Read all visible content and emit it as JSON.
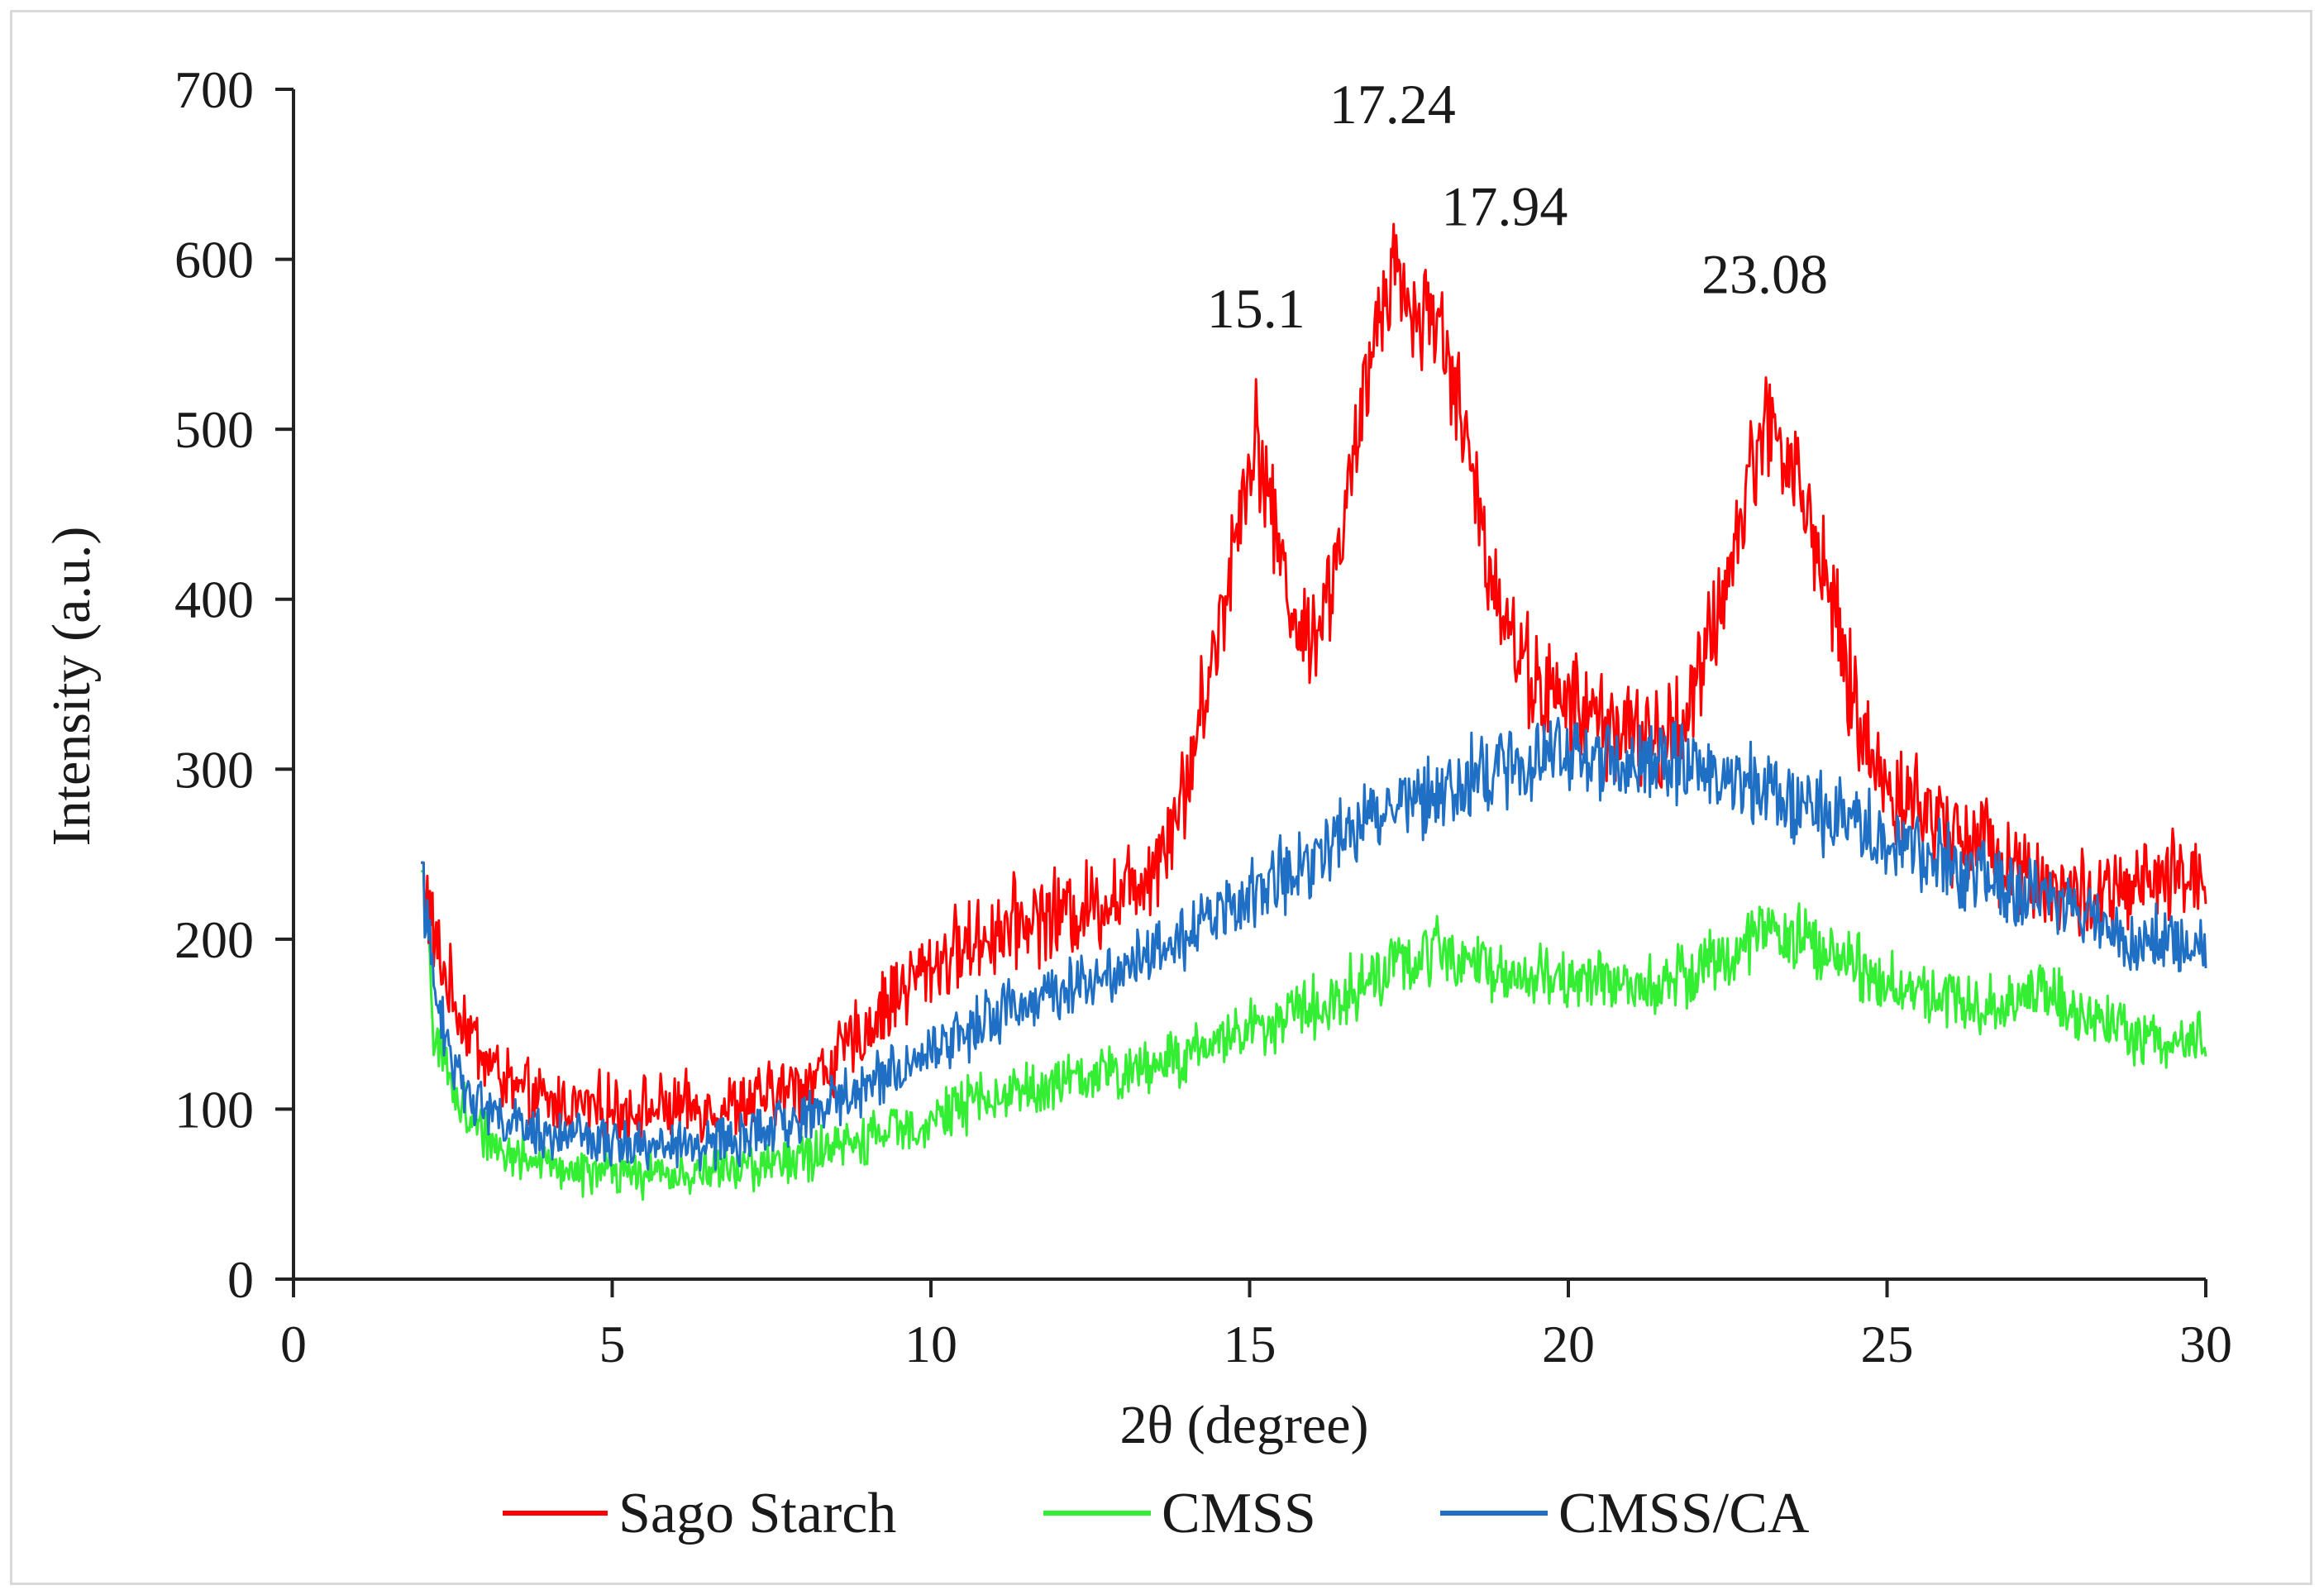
{
  "chart_data": {
    "type": "line",
    "title": "",
    "xlabel": "2θ (degree)",
    "ylabel": "Intensity (a.u.)",
    "xlim": [
      0,
      30
    ],
    "ylim": [
      0,
      700
    ],
    "xticks": [
      0,
      5,
      10,
      15,
      20,
      25,
      30
    ],
    "yticks": [
      0,
      100,
      200,
      300,
      400,
      500,
      600,
      700
    ],
    "grid": false,
    "legend_position": "bottom",
    "annotations": [
      {
        "text": "15.1",
        "x": 15.1,
        "y": 560
      },
      {
        "text": "17.24",
        "x": 17.24,
        "y": 680
      },
      {
        "text": "17.94",
        "x": 19.0,
        "y": 620
      },
      {
        "text": "23.08",
        "x": 23.08,
        "y": 580
      }
    ],
    "series": [
      {
        "name": "Sago Starch",
        "color": "#ff0000",
        "noise": 18,
        "points": [
          [
            2.0,
            245
          ],
          [
            2.2,
            200
          ],
          [
            2.5,
            165
          ],
          [
            3.0,
            130
          ],
          [
            3.5,
            110
          ],
          [
            4.0,
            103
          ],
          [
            5.0,
            100
          ],
          [
            6.0,
            100
          ],
          [
            7.0,
            102
          ],
          [
            7.5,
            108
          ],
          [
            8.0,
            115
          ],
          [
            8.5,
            128
          ],
          [
            9.0,
            148
          ],
          [
            9.5,
            170
          ],
          [
            10.0,
            185
          ],
          [
            10.5,
            195
          ],
          [
            11.0,
            205
          ],
          [
            11.5,
            212
          ],
          [
            12.0,
            215
          ],
          [
            12.5,
            220
          ],
          [
            13.0,
            228
          ],
          [
            13.5,
            245
          ],
          [
            14.0,
            290
          ],
          [
            14.5,
            380
          ],
          [
            15.0,
            485
          ],
          [
            15.1,
            500
          ],
          [
            15.4,
            440
          ],
          [
            15.8,
            375
          ],
          [
            16.2,
            395
          ],
          [
            16.6,
            470
          ],
          [
            17.0,
            565
          ],
          [
            17.24,
            600
          ],
          [
            17.6,
            565
          ],
          [
            17.94,
            570
          ],
          [
            18.3,
            510
          ],
          [
            18.7,
            430
          ],
          [
            19.2,
            370
          ],
          [
            19.6,
            345
          ],
          [
            20.0,
            338
          ],
          [
            20.5,
            330
          ],
          [
            21.0,
            320
          ],
          [
            21.5,
            315
          ],
          [
            22.0,
            345
          ],
          [
            22.5,
            415
          ],
          [
            23.08,
            510
          ],
          [
            23.5,
            480
          ],
          [
            24.0,
            420
          ],
          [
            24.4,
            350
          ],
          [
            24.8,
            300
          ],
          [
            25.2,
            285
          ],
          [
            25.6,
            275
          ],
          [
            26.0,
            265
          ],
          [
            26.5,
            258
          ],
          [
            27.0,
            245
          ],
          [
            27.5,
            232
          ],
          [
            28.0,
            225
          ],
          [
            28.5,
            225
          ],
          [
            29.0,
            230
          ],
          [
            29.5,
            235
          ],
          [
            30.0,
            240
          ]
        ]
      },
      {
        "name": "CMSS",
        "color": "#33ee33",
        "noise": 14,
        "points": [
          [
            2.0,
            240
          ],
          [
            2.2,
            150
          ],
          [
            2.5,
            110
          ],
          [
            3.0,
            85
          ],
          [
            3.5,
            72
          ],
          [
            4.0,
            66
          ],
          [
            5.0,
            62
          ],
          [
            6.0,
            62
          ],
          [
            7.0,
            65
          ],
          [
            8.0,
            72
          ],
          [
            9.0,
            82
          ],
          [
            10.0,
            95
          ],
          [
            11.0,
            108
          ],
          [
            12.0,
            115
          ],
          [
            13.0,
            122
          ],
          [
            14.0,
            132
          ],
          [
            15.0,
            148
          ],
          [
            16.0,
            160
          ],
          [
            17.0,
            178
          ],
          [
            18.0,
            195
          ],
          [
            18.5,
            188
          ],
          [
            19.0,
            180
          ],
          [
            20.0,
            175
          ],
          [
            21.0,
            175
          ],
          [
            22.0,
            180
          ],
          [
            23.0,
            205
          ],
          [
            24.0,
            195
          ],
          [
            25.0,
            175
          ],
          [
            26.0,
            165
          ],
          [
            27.0,
            160
          ],
          [
            27.5,
            175
          ],
          [
            27.8,
            160
          ],
          [
            28.5,
            148
          ],
          [
            29.0,
            142
          ],
          [
            30.0,
            140
          ]
        ]
      },
      {
        "name": "CMSS/CA",
        "color": "#1f6fc4",
        "noise": 14,
        "points": [
          [
            2.0,
            245
          ],
          [
            2.2,
            170
          ],
          [
            2.5,
            125
          ],
          [
            3.0,
            100
          ],
          [
            3.5,
            90
          ],
          [
            4.0,
            85
          ],
          [
            5.0,
            80
          ],
          [
            6.0,
            78
          ],
          [
            7.0,
            82
          ],
          [
            8.0,
            95
          ],
          [
            9.0,
            115
          ],
          [
            10.0,
            135
          ],
          [
            11.0,
            155
          ],
          [
            12.0,
            170
          ],
          [
            13.0,
            185
          ],
          [
            14.0,
            205
          ],
          [
            15.0,
            225
          ],
          [
            16.0,
            250
          ],
          [
            17.0,
            275
          ],
          [
            18.0,
            290
          ],
          [
            19.0,
            300
          ],
          [
            20.0,
            310
          ],
          [
            21.0,
            305
          ],
          [
            22.0,
            300
          ],
          [
            23.0,
            288
          ],
          [
            24.0,
            275
          ],
          [
            25.0,
            260
          ],
          [
            26.0,
            245
          ],
          [
            27.0,
            230
          ],
          [
            28.0,
            215
          ],
          [
            29.0,
            200
          ],
          [
            30.0,
            190
          ]
        ]
      }
    ]
  }
}
